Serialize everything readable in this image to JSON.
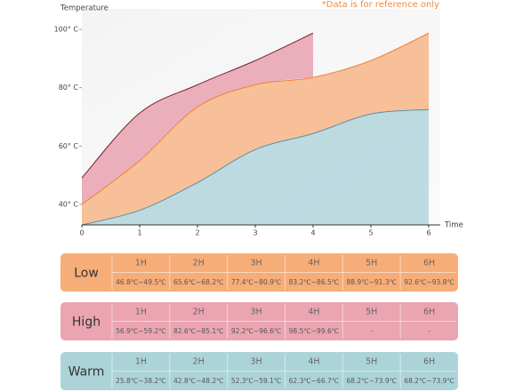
{
  "chart_data": {
    "type": "area",
    "ylabel": "Temperature",
    "xlabel": "Time",
    "note": "*Data is for reference only",
    "x": [
      0,
      1,
      2,
      3,
      4,
      5,
      6
    ],
    "xlim": [
      0,
      6.2
    ],
    "xticks": [
      0,
      1,
      2,
      3,
      4,
      5,
      6
    ],
    "ylim": [
      33,
      107
    ],
    "yticks": [
      {
        "value": 40,
        "label": "40° C"
      },
      {
        "value": 60,
        "label": "60° C"
      },
      {
        "value": 80,
        "label": "80° C"
      },
      {
        "value": 100,
        "label": "100° C"
      }
    ],
    "series": [
      {
        "name": "Low",
        "color": "#f0803c",
        "fill": "#f7ad78",
        "values": [
          40,
          55,
          73.4,
          81,
          83.5,
          89.3,
          98.7
        ]
      },
      {
        "name": "High",
        "color": "#7a2030",
        "fill": "#e597a6",
        "values": [
          49.1,
          71.3,
          81,
          89.3,
          98.7,
          null,
          null
        ]
      },
      {
        "name": "Warm",
        "color": "#5a8fa8",
        "fill": "#a9d0da",
        "values": [
          33,
          38,
          47.5,
          58.8,
          64.3,
          71,
          72.5
        ]
      }
    ]
  },
  "table_columns": [
    "1H",
    "2H",
    "3H",
    "4H",
    "5H",
    "6H"
  ],
  "tables": [
    {
      "background": "#f7ad78",
      "ranges": [
        "46.8℃~49.5℃",
        "65.6℃~68.2℃",
        "77.4℃~80.9℃",
        "83.2℃~86.5℃",
        "88.9℃~91.3℃",
        "92.6℃~93.8℃"
      ]
    },
    {
      "background": "#eba5b2",
      "ranges": [
        "56.9℃~59.2℃",
        "82.6℃~85.1℃",
        "92.2℃~96.6℃",
        "98.5℃~99.6℃",
        "-",
        "-"
      ]
    },
    {
      "background": "#acd4d8",
      "ranges": [
        "25.8℃~38.2℃",
        "42.8℃~48.2℃",
        "52.3℃~59.1℃",
        "62.3℃~66.7℃",
        "68.2℃~73.9℃",
        "68.2℃~73.9℃"
      ]
    }
  ]
}
